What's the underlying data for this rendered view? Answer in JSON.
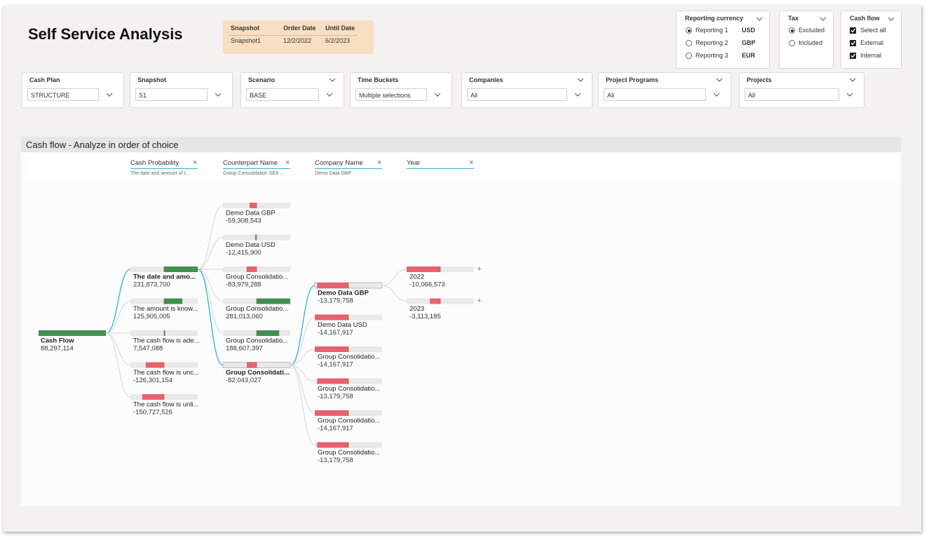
{
  "header": {
    "title": "Self Service Analysis"
  },
  "snapshot_table": {
    "columns": [
      "Snapshot",
      "Order Date",
      "Until Date"
    ],
    "rows": [
      [
        "Snapshot1",
        "12/2/2022",
        "6/2/2023"
      ]
    ]
  },
  "reporting_currency": {
    "title": "Reporting currency",
    "options": [
      {
        "label": "Reporting 1",
        "code": "USD",
        "selected": true
      },
      {
        "label": "Reporting 2",
        "code": "GBP",
        "selected": false
      },
      {
        "label": "Reporting 3",
        "code": "EUR",
        "selected": false
      }
    ]
  },
  "tax": {
    "title": "Tax",
    "options": [
      {
        "label": "Excluded",
        "selected": true
      },
      {
        "label": "Included",
        "selected": false
      }
    ]
  },
  "cash_flow_filter": {
    "title": "Cash flow",
    "options": [
      {
        "label": "Select all",
        "checked": true
      },
      {
        "label": "External",
        "checked": true
      },
      {
        "label": "Internal",
        "checked": true
      }
    ]
  },
  "slicers": [
    {
      "title": "Cash Plan",
      "value": "STRUCTURE"
    },
    {
      "title": "Snapshot",
      "value": "S1"
    },
    {
      "title": "Scenario",
      "value": "BASE"
    },
    {
      "title": "Time Buckets",
      "value": "Multiple selections"
    },
    {
      "title": "Companies",
      "value": "All"
    },
    {
      "title": "Project Programs",
      "value": "All"
    },
    {
      "title": "Projects",
      "value": "All"
    }
  ],
  "decomposition": {
    "title": "Cash flow - Analyze in order of choice",
    "root": {
      "label": "Cash Flow",
      "value": "88,297,114"
    },
    "columns": [
      {
        "field": "Cash Probability",
        "filter": "The date and amount of t..."
      },
      {
        "field": "Counterpart Name",
        "filter": "Group Consolidation SEK ..."
      },
      {
        "field": "Company Name",
        "filter": "Demo Data GBP"
      },
      {
        "field": "Year"
      }
    ],
    "levels": [
      [
        {
          "label": "The date and amo...",
          "value": "231,873,700",
          "selected": true
        },
        {
          "label": "The amount is know...",
          "value": "125,905,005",
          "selected": false
        },
        {
          "label": "The cash flow is ade...",
          "value": "7,547,088",
          "selected": false
        },
        {
          "label": "The cash flow is unc...",
          "value": "-126,301,154",
          "selected": false
        },
        {
          "label": "The cash flow is unli...",
          "value": "-150,727,526",
          "selected": false
        }
      ],
      [
        {
          "label": "Demo Data GBP",
          "value": "-59,308,543",
          "selected": false
        },
        {
          "label": "Demo Data USD",
          "value": "-12,415,900",
          "selected": false
        },
        {
          "label": "Group Consolidatio...",
          "value": "-83,979,288",
          "selected": false
        },
        {
          "label": "Group Consolidatio...",
          "value": "281,013,060",
          "selected": false
        },
        {
          "label": "Group Consolidatio...",
          "value": "188,607,397",
          "selected": false
        },
        {
          "label": "Group Consolidati...",
          "value": "-82,043,027",
          "selected": true
        }
      ],
      [
        {
          "label": "Demo Data GBP",
          "value": "-13,179,758",
          "selected": true
        },
        {
          "label": "Demo Data USD",
          "value": "-14,167,917",
          "selected": false
        },
        {
          "label": "Group Consolidatio...",
          "value": "-14,167,917",
          "selected": false
        },
        {
          "label": "Group Consolidatio...",
          "value": "-13,179,758",
          "selected": false
        },
        {
          "label": "Group Consolidatio...",
          "value": "-14,167,917",
          "selected": false
        },
        {
          "label": "Group Consolidatio...",
          "value": "-13,179,758",
          "selected": false
        }
      ],
      [
        {
          "label": "2022",
          "value": "-10,066,573",
          "selected": false
        },
        {
          "label": "2023",
          "value": "-3,113,185",
          "selected": false
        }
      ]
    ]
  }
}
